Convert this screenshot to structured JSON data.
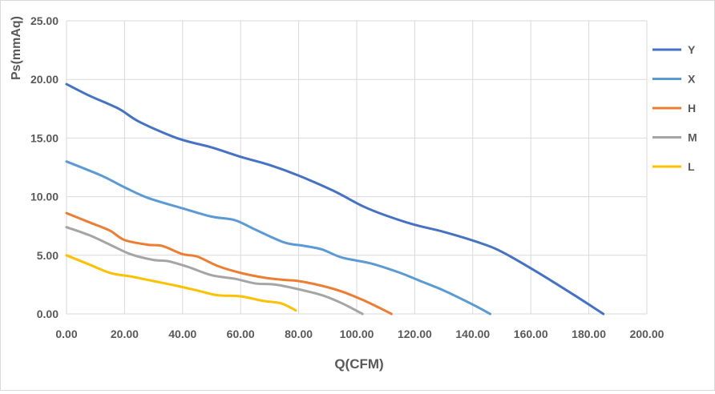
{
  "chart_data": {
    "type": "line",
    "title": "",
    "xlabel": "Q(CFM)",
    "ylabel": "Ps(mmAq)",
    "xlim": [
      0,
      200
    ],
    "ylim": [
      0,
      25
    ],
    "xticks": [
      "0.00",
      "20.00",
      "40.00",
      "60.00",
      "80.00",
      "100.00",
      "120.00",
      "140.00",
      "160.00",
      "180.00",
      "200.00"
    ],
    "yticks": [
      "0.00",
      "5.00",
      "10.00",
      "15.00",
      "20.00",
      "25.00"
    ],
    "grid": true,
    "legend_position": "right",
    "series": [
      {
        "name": "Y",
        "color": "#4472C4",
        "points": [
          [
            0,
            19.6
          ],
          [
            8,
            18.6
          ],
          [
            18,
            17.5
          ],
          [
            25,
            16.4
          ],
          [
            38,
            15.0
          ],
          [
            50,
            14.2
          ],
          [
            60,
            13.4
          ],
          [
            70,
            12.7
          ],
          [
            80,
            11.8
          ],
          [
            92,
            10.5
          ],
          [
            102,
            9.2
          ],
          [
            110,
            8.4
          ],
          [
            120,
            7.6
          ],
          [
            130,
            7.0
          ],
          [
            142,
            6.1
          ],
          [
            150,
            5.3
          ],
          [
            162,
            3.6
          ],
          [
            175,
            1.6
          ],
          [
            185,
            0.0
          ]
        ]
      },
      {
        "name": "X",
        "color": "#5B9BD5",
        "points": [
          [
            0,
            13.0
          ],
          [
            12,
            11.8
          ],
          [
            20,
            10.8
          ],
          [
            28,
            9.9
          ],
          [
            40,
            9.0
          ],
          [
            50,
            8.3
          ],
          [
            58,
            8.0
          ],
          [
            65,
            7.2
          ],
          [
            75,
            6.1
          ],
          [
            82,
            5.8
          ],
          [
            88,
            5.5
          ],
          [
            95,
            4.8
          ],
          [
            105,
            4.3
          ],
          [
            115,
            3.5
          ],
          [
            122,
            2.8
          ],
          [
            130,
            2.0
          ],
          [
            140,
            0.8
          ],
          [
            146,
            0.0
          ]
        ]
      },
      {
        "name": "H",
        "color": "#ED7D31",
        "points": [
          [
            0,
            8.6
          ],
          [
            8,
            7.8
          ],
          [
            15,
            7.1
          ],
          [
            20,
            6.3
          ],
          [
            28,
            5.9
          ],
          [
            33,
            5.8
          ],
          [
            40,
            5.1
          ],
          [
            45,
            4.9
          ],
          [
            52,
            4.1
          ],
          [
            60,
            3.5
          ],
          [
            68,
            3.1
          ],
          [
            75,
            2.9
          ],
          [
            80,
            2.8
          ],
          [
            88,
            2.4
          ],
          [
            95,
            1.9
          ],
          [
            102,
            1.2
          ],
          [
            108,
            0.5
          ],
          [
            112,
            0.0
          ]
        ]
      },
      {
        "name": "M",
        "color": "#A5A5A5",
        "points": [
          [
            0,
            7.4
          ],
          [
            8,
            6.7
          ],
          [
            15,
            5.9
          ],
          [
            22,
            5.1
          ],
          [
            30,
            4.6
          ],
          [
            35,
            4.5
          ],
          [
            42,
            4.0
          ],
          [
            50,
            3.3
          ],
          [
            58,
            3.0
          ],
          [
            65,
            2.6
          ],
          [
            72,
            2.5
          ],
          [
            80,
            2.1
          ],
          [
            88,
            1.6
          ],
          [
            95,
            0.9
          ],
          [
            102,
            0.0
          ]
        ]
      },
      {
        "name": "L",
        "color": "#FFC000",
        "points": [
          [
            0,
            5.0
          ],
          [
            7,
            4.3
          ],
          [
            15,
            3.5
          ],
          [
            22,
            3.2
          ],
          [
            30,
            2.8
          ],
          [
            38,
            2.4
          ],
          [
            45,
            2.0
          ],
          [
            52,
            1.6
          ],
          [
            60,
            1.5
          ],
          [
            68,
            1.1
          ],
          [
            74,
            0.9
          ],
          [
            79,
            0.3
          ]
        ]
      }
    ]
  }
}
